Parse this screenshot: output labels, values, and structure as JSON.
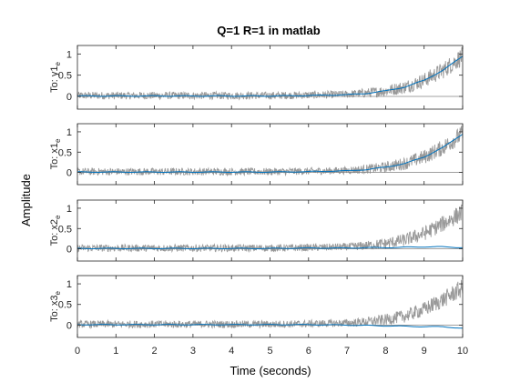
{
  "chart_data": {
    "type": "line",
    "title": "Q=1 R=1 in matlab",
    "xlabel": "Time (seconds)",
    "ylabel": "Amplitude",
    "xlim": [
      0,
      10
    ],
    "x_ticks": [
      "0",
      "1",
      "2",
      "3",
      "4",
      "5",
      "6",
      "7",
      "8",
      "9",
      "10"
    ],
    "ylim": [
      -0.3,
      1.2
    ],
    "y_ticks": [
      "0",
      "0.5",
      "1"
    ],
    "grid": false,
    "subplots": [
      {
        "label": "To: y1",
        "subscript": "e"
      },
      {
        "label": "To: x1",
        "subscript": "e"
      },
      {
        "label": "To: x2",
        "subscript": "e"
      },
      {
        "label": "To: x3",
        "subscript": "e"
      }
    ],
    "series": [
      {
        "role": "noisy response",
        "color": "#999999",
        "noise_amplitude": 0.09
      },
      {
        "role": "estimate",
        "color": "#0072BD"
      },
      {
        "role": "zero reference",
        "color": "#808080"
      }
    ],
    "x": [
      0,
      1,
      2,
      3,
      4,
      5,
      6,
      7,
      7.5,
      8,
      8.5,
      9,
      9.5,
      10
    ],
    "noisy_values": [
      [
        0.02,
        0.02,
        0.02,
        0.02,
        0.02,
        0.02,
        0.03,
        0.05,
        0.08,
        0.13,
        0.22,
        0.38,
        0.62,
        0.95
      ],
      [
        0.02,
        0.02,
        0.02,
        0.02,
        0.02,
        0.02,
        0.03,
        0.05,
        0.08,
        0.13,
        0.22,
        0.38,
        0.62,
        0.95
      ],
      [
        0.02,
        0.02,
        0.02,
        0.02,
        0.02,
        0.02,
        0.03,
        0.05,
        0.08,
        0.13,
        0.22,
        0.38,
        0.62,
        0.9
      ],
      [
        0.02,
        0.02,
        0.02,
        0.02,
        0.02,
        0.02,
        0.03,
        0.05,
        0.08,
        0.13,
        0.22,
        0.38,
        0.62,
        0.9
      ]
    ],
    "estimate_values": [
      [
        0.01,
        0.01,
        0.01,
        0.01,
        0.01,
        0.01,
        0.02,
        0.04,
        0.07,
        0.13,
        0.22,
        0.38,
        0.62,
        0.95
      ],
      [
        0.01,
        0.01,
        0.01,
        0.01,
        0.01,
        0.01,
        0.02,
        0.04,
        0.07,
        0.13,
        0.22,
        0.38,
        0.62,
        0.95
      ],
      [
        0.01,
        0.01,
        0.01,
        0.01,
        0.01,
        0.01,
        0.02,
        0.02,
        0.03,
        0.03,
        0.04,
        0.05,
        0.05,
        0.03
      ],
      [
        0.01,
        0.01,
        0.01,
        0.01,
        0.01,
        0.01,
        0.01,
        0.0,
        -0.01,
        -0.02,
        -0.03,
        -0.04,
        -0.04,
        -0.08
      ]
    ]
  }
}
